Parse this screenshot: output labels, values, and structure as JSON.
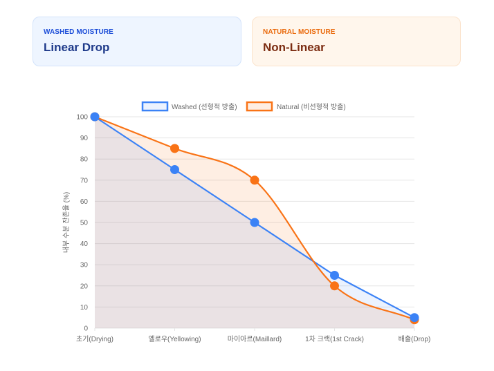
{
  "cards": {
    "washed": {
      "label": "WASHED MOISTURE",
      "title": "Linear Drop"
    },
    "natural": {
      "label": "NATURAL MOISTURE",
      "title": "Non-Linear"
    }
  },
  "colors": {
    "washed": "#3b82f6",
    "natural": "#f97316",
    "washed_fill": "rgba(59,130,246,0.10)",
    "natural_fill": "rgba(249,115,22,0.12)"
  },
  "chart_data": {
    "type": "line",
    "title": "",
    "xlabel": "",
    "ylabel": "내부 수분 잔존율 (%)",
    "ylim": [
      0,
      100
    ],
    "yticks": [
      0,
      10,
      20,
      30,
      40,
      50,
      60,
      70,
      80,
      90,
      100
    ],
    "grid": true,
    "legend_position": "top-center",
    "categories": [
      "초기(Drying)",
      "옐로우(Yellowing)",
      "마이아르(Maillard)",
      "1차 크랙(1st Crack)",
      "배출(Drop)"
    ],
    "series": [
      {
        "name": "Washed (선형적 방출)",
        "values": [
          100,
          75,
          50,
          25,
          5
        ],
        "curved": false
      },
      {
        "name": "Natural (비선형적 방출)",
        "values": [
          100,
          85,
          70,
          20,
          4
        ],
        "curved": true
      }
    ]
  }
}
